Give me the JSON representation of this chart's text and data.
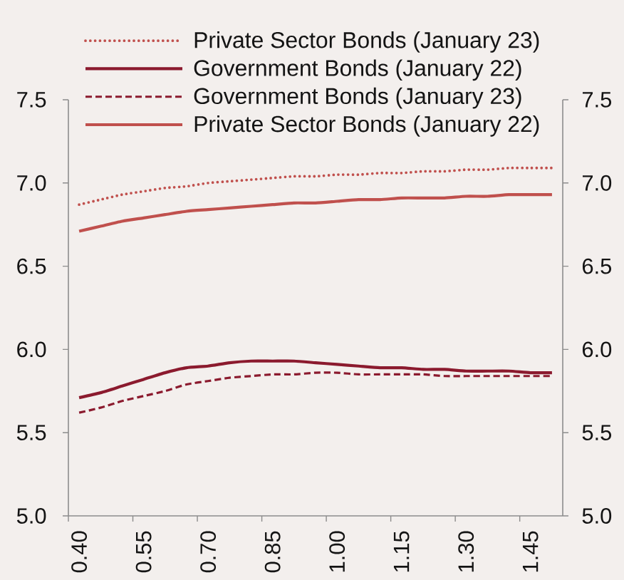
{
  "chart_data": {
    "type": "line",
    "categories": [
      "0.40",
      null,
      null,
      "0.55",
      null,
      null,
      "0.70",
      null,
      null,
      "0.85",
      null,
      null,
      "1.00",
      null,
      null,
      "1.15",
      null,
      null,
      "1.30",
      null,
      null,
      "1.45",
      null
    ],
    "series": [
      {
        "name": "Private Sector Bonds (January 23)",
        "color": "#c0504d",
        "line_style": "dotted",
        "values": [
          6.87,
          6.9,
          6.93,
          6.95,
          6.97,
          6.98,
          7.0,
          7.01,
          7.02,
          7.03,
          7.04,
          7.04,
          7.05,
          7.05,
          7.06,
          7.06,
          7.07,
          7.07,
          7.08,
          7.08,
          7.09,
          7.09,
          7.09
        ]
      },
      {
        "name": "Government Bonds (January 22)",
        "color": "#8b1a2e",
        "line_style": "solid",
        "values": [
          5.71,
          5.74,
          5.78,
          5.82,
          5.86,
          5.89,
          5.9,
          5.92,
          5.93,
          5.93,
          5.93,
          5.92,
          5.91,
          5.9,
          5.89,
          5.89,
          5.88,
          5.88,
          5.87,
          5.87,
          5.87,
          5.86,
          5.86
        ]
      },
      {
        "name": "Government Bonds (January 23)",
        "color": "#8b1a2e",
        "line_style": "dashed",
        "values": [
          5.62,
          5.65,
          5.69,
          5.72,
          5.75,
          5.79,
          5.81,
          5.83,
          5.84,
          5.85,
          5.85,
          5.86,
          5.86,
          5.85,
          5.85,
          5.85,
          5.85,
          5.84,
          5.84,
          5.84,
          5.84,
          5.84,
          5.84
        ]
      },
      {
        "name": "Private Sector Bonds (January 22)",
        "color": "#c0504d",
        "line_style": "solid",
        "values": [
          6.71,
          6.74,
          6.77,
          6.79,
          6.81,
          6.83,
          6.84,
          6.85,
          6.86,
          6.87,
          6.88,
          6.88,
          6.89,
          6.9,
          6.9,
          6.91,
          6.91,
          6.91,
          6.92,
          6.92,
          6.93,
          6.93,
          6.93
        ]
      }
    ],
    "ylim": [
      5.0,
      7.5
    ],
    "yticks": [
      {
        "value": 5.0,
        "label": "5.0"
      },
      5.5,
      {
        "value": 6.0,
        "label": "6.0"
      },
      6.5,
      {
        "value": 7.0,
        "label": "7.0"
      },
      7.5
    ],
    "y2lim": [
      5.0,
      7.5
    ],
    "y2ticks": [
      {
        "value": 5.0,
        "label": "5.0"
      },
      5.5,
      {
        "value": 6.0,
        "label": "6.0"
      },
      6.5,
      {
        "value": 7.0,
        "label": "7.0"
      },
      7.5
    ],
    "grid": false,
    "legend": "top"
  }
}
